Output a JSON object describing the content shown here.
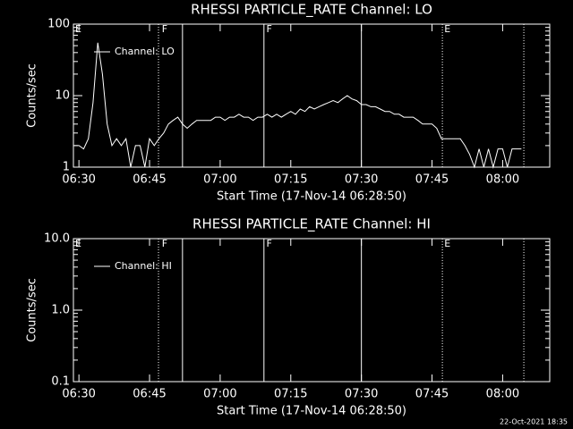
{
  "chart_data": [
    {
      "type": "line",
      "title": "RHESSI PARTICLE_RATE Channel: LO",
      "xlabel": "Start Time (17-Nov-14 06:28:50)",
      "ylabel": "Counts/sec",
      "log_y": true,
      "ylim": [
        1,
        100
      ],
      "yticks": [
        1,
        10,
        100
      ],
      "xlim": [
        388.83,
        490
      ],
      "xticks": [
        {
          "value": 390,
          "label": "06:30"
        },
        {
          "value": 405,
          "label": "06:45"
        },
        {
          "value": 420,
          "label": "07:00"
        },
        {
          "value": 435,
          "label": "07:15"
        },
        {
          "value": 450,
          "label": "07:30"
        },
        {
          "value": 465,
          "label": "07:45"
        },
        {
          "value": 480,
          "label": "08:00"
        }
      ],
      "lines": [
        {
          "x": 406.9,
          "style": "dotted"
        },
        {
          "x": 412.0,
          "style": "solid"
        },
        {
          "x": 429.3,
          "style": "solid"
        },
        {
          "x": 450.0,
          "style": "solid"
        },
        {
          "x": 467.2,
          "style": "dotted"
        },
        {
          "x": 484.5,
          "style": "dotted"
        }
      ],
      "flags": [
        {
          "x": 389.2,
          "label": "E"
        },
        {
          "x": 407.6,
          "label": "F"
        },
        {
          "x": 429.8,
          "label": "F"
        },
        {
          "x": 467.6,
          "label": "E"
        }
      ],
      "x": [
        389,
        390,
        391,
        392,
        393,
        394,
        395,
        396,
        397,
        398,
        399,
        400,
        401,
        402,
        403,
        404,
        405,
        406,
        407,
        408,
        409,
        410,
        411,
        412,
        413,
        414,
        415,
        416,
        417,
        418,
        419,
        420,
        421,
        422,
        423,
        424,
        425,
        426,
        427,
        428,
        429,
        430,
        431,
        432,
        433,
        434,
        435,
        436,
        437,
        438,
        439,
        440,
        441,
        442,
        443,
        444,
        445,
        446,
        447,
        448,
        449,
        450,
        451,
        452,
        453,
        454,
        455,
        456,
        457,
        458,
        459,
        460,
        461,
        462,
        463,
        464,
        465,
        466,
        467,
        468,
        469,
        470,
        471,
        472,
        473,
        474,
        475,
        476,
        477,
        478,
        479,
        480,
        481,
        482,
        483,
        484
      ],
      "series": [
        {
          "name": "Channel: LO",
          "color": "#ffffff",
          "values": [
            2,
            2,
            1.8,
            2.5,
            8,
            55,
            20,
            4,
            2,
            2.5,
            2,
            2.5,
            1,
            2,
            2,
            1,
            2.5,
            2,
            2.5,
            3,
            4,
            4.5,
            5,
            4,
            3.5,
            4,
            4.5,
            4.5,
            4.5,
            4.5,
            5,
            5,
            4.5,
            5,
            5,
            5.5,
            5,
            5,
            4.5,
            5,
            5,
            5.5,
            5,
            5.5,
            5,
            5.5,
            6,
            5.5,
            6.5,
            6,
            7,
            6.5,
            7,
            7.5,
            8,
            8.5,
            8,
            9,
            10,
            9,
            8.5,
            7.5,
            7.5,
            7,
            7,
            6.5,
            6,
            6,
            5.5,
            5.5,
            5,
            5,
            5,
            4.5,
            4,
            4,
            4,
            3.5,
            2.5,
            2.5,
            2.5,
            2.5,
            2.5,
            2,
            1.5,
            1,
            1.8,
            1,
            1.8,
            1,
            1.8,
            1.8,
            1,
            1.8,
            1.8,
            1.8
          ]
        }
      ]
    },
    {
      "type": "line",
      "title": "RHESSI PARTICLE_RATE Channel: HI",
      "xlabel": "Start Time (17-Nov-14 06:28:50)",
      "ylabel": "Counts/sec",
      "log_y": true,
      "ylim": [
        0.1,
        10
      ],
      "yticks": [
        {
          "value": 0.1,
          "label": "0.1"
        },
        {
          "value": 1,
          "label": "1.0"
        },
        {
          "value": 10,
          "label": "10.0"
        }
      ],
      "xlim": [
        388.83,
        490
      ],
      "xticks": [
        {
          "value": 390,
          "label": "06:30"
        },
        {
          "value": 405,
          "label": "06:45"
        },
        {
          "value": 420,
          "label": "07:00"
        },
        {
          "value": 435,
          "label": "07:15"
        },
        {
          "value": 450,
          "label": "07:30"
        },
        {
          "value": 465,
          "label": "07:45"
        },
        {
          "value": 480,
          "label": "08:00"
        }
      ],
      "lines": [
        {
          "x": 406.9,
          "style": "dotted"
        },
        {
          "x": 412.0,
          "style": "solid"
        },
        {
          "x": 429.3,
          "style": "solid"
        },
        {
          "x": 450.0,
          "style": "solid"
        },
        {
          "x": 467.2,
          "style": "dotted"
        },
        {
          "x": 484.5,
          "style": "dotted"
        }
      ],
      "flags": [
        {
          "x": 389.2,
          "label": "E"
        },
        {
          "x": 407.6,
          "label": "F"
        },
        {
          "x": 429.8,
          "label": "F"
        },
        {
          "x": 467.6,
          "label": "E"
        }
      ],
      "x": [],
      "series": [
        {
          "name": "Channel: HI",
          "color": "#ffffff",
          "values": []
        }
      ]
    }
  ],
  "footer": "22-Oct-2021 18:35"
}
